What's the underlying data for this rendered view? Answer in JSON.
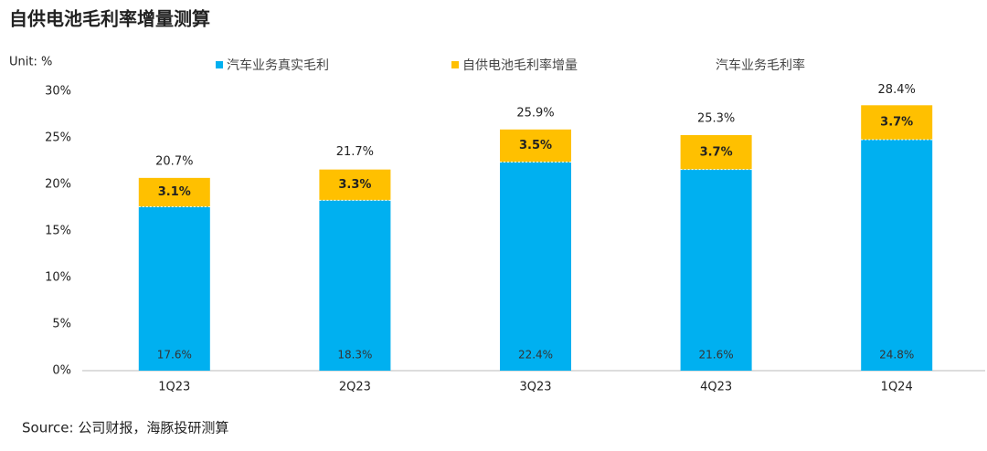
{
  "chart_data": {
    "type": "stacked-bar",
    "title": "自供电池毛利率增量测算",
    "unit": "Unit: %",
    "source": "Source: 公司财报，海豚投研测算",
    "categories": [
      "1Q23",
      "2Q23",
      "3Q23",
      "4Q23",
      "1Q24"
    ],
    "series": [
      {
        "name": "汽车业务真实毛利",
        "color": "#00b0f0",
        "values": [
          17.6,
          18.3,
          22.4,
          21.6,
          24.8
        ],
        "value_labels": [
          "17.6%",
          "18.3%",
          "22.4%",
          "21.6%",
          "24.8%"
        ]
      },
      {
        "name": "自供电池毛利率增量",
        "color": "#ffc000",
        "values": [
          3.1,
          3.3,
          3.5,
          3.7,
          3.7
        ],
        "value_labels": [
          "3.1%",
          "3.3%",
          "3.5%",
          "3.7%",
          "3.7%"
        ]
      }
    ],
    "totals": {
      "name": "汽车业务毛利率",
      "values": [
        20.7,
        21.7,
        25.9,
        25.3,
        28.4
      ],
      "value_labels": [
        "20.7%",
        "21.7%",
        "25.9%",
        "25.3%",
        "28.4%"
      ]
    },
    "ylim": [
      0,
      30
    ],
    "yticks": [
      {
        "value": 0,
        "label": "0%"
      },
      {
        "value": 5,
        "label": "5%"
      },
      {
        "value": 10,
        "label": "10%"
      },
      {
        "value": 15,
        "label": "15%"
      },
      {
        "value": 20,
        "label": "20%"
      },
      {
        "value": 25,
        "label": "25%"
      },
      {
        "value": 30,
        "label": "30%"
      }
    ],
    "grid": false
  }
}
